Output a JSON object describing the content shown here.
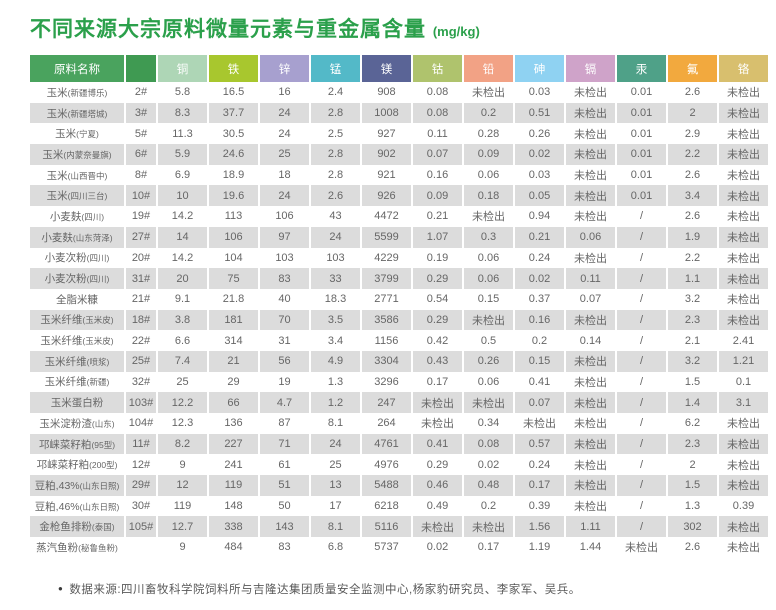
{
  "title": {
    "text": "不同来源大宗原料微量元素与重金属含量",
    "unit": "(mg/kg)"
  },
  "style": {
    "title_green": "#2ba04b",
    "header_name_bg": "#4aa35e",
    "header_sample_bg": "#3f9a52",
    "stripe": "#dcdcdc",
    "text_gray": "#666666",
    "header_text": "#ffffff"
  },
  "chart_data": {
    "type": "table",
    "title": "不同来源大宗原料微量元素与重金属含量 (mg/kg)",
    "name_column_header": "原料名称",
    "not_detected_label": "未检出",
    "element_columns": [
      {
        "label": "铜",
        "color": "#aed6b6"
      },
      {
        "label": "铁",
        "color": "#a8c72e"
      },
      {
        "label": "锌",
        "color": "#a7a0cf"
      },
      {
        "label": "锰",
        "color": "#53b9c8"
      },
      {
        "label": "镁",
        "color": "#5a6496"
      },
      {
        "label": "钴",
        "color": "#afc36d"
      },
      {
        "label": "铅",
        "color": "#f2a285"
      },
      {
        "label": "砷",
        "color": "#8fd2f2"
      },
      {
        "label": "镉",
        "color": "#cfa3c9"
      },
      {
        "label": "汞",
        "color": "#4fa188"
      },
      {
        "label": "氟",
        "color": "#f2a93e"
      },
      {
        "label": "铬",
        "color": "#d8bf6e"
      }
    ],
    "rows": [
      {
        "name": "玉米",
        "origin": "(新疆博乐)",
        "sample": "2#",
        "values": [
          "5.8",
          "16.5",
          "16",
          "2.4",
          "908",
          "0.08",
          "未检出",
          "0.03",
          "未检出",
          "0.01",
          "2.6",
          "未检出"
        ]
      },
      {
        "name": "玉米",
        "origin": "(新疆塔城)",
        "sample": "3#",
        "values": [
          "8.3",
          "37.7",
          "24",
          "2.8",
          "1008",
          "0.08",
          "0.2",
          "0.51",
          "未检出",
          "0.01",
          "2",
          "未检出"
        ]
      },
      {
        "name": "玉米",
        "origin": "(宁夏)",
        "sample": "5#",
        "values": [
          "11.3",
          "30.5",
          "24",
          "2.5",
          "927",
          "0.11",
          "0.28",
          "0.26",
          "未检出",
          "0.01",
          "2.9",
          "未检出"
        ]
      },
      {
        "name": "玉米",
        "origin": "(内蒙奈曼旗)",
        "sample": "6#",
        "values": [
          "5.9",
          "24.6",
          "25",
          "2.8",
          "902",
          "0.07",
          "0.09",
          "0.02",
          "未检出",
          "0.01",
          "2.2",
          "未检出"
        ]
      },
      {
        "name": "玉米",
        "origin": "(山西晋中)",
        "sample": "8#",
        "values": [
          "6.9",
          "18.9",
          "18",
          "2.8",
          "921",
          "0.16",
          "0.06",
          "0.03",
          "未检出",
          "0.01",
          "2.6",
          "未检出"
        ]
      },
      {
        "name": "玉米",
        "origin": "(四川三台)",
        "sample": "10#",
        "values": [
          "10",
          "19.6",
          "24",
          "2.6",
          "926",
          "0.09",
          "0.18",
          "0.05",
          "未检出",
          "0.01",
          "3.4",
          "未检出"
        ]
      },
      {
        "name": "小麦麸",
        "origin": "(四川)",
        "sample": "19#",
        "values": [
          "14.2",
          "113",
          "106",
          "43",
          "4472",
          "0.21",
          "未检出",
          "0.94",
          "未检出",
          "/",
          "2.6",
          "未检出"
        ]
      },
      {
        "name": "小麦麸",
        "origin": "(山东菏泽)",
        "sample": "27#",
        "values": [
          "14",
          "106",
          "97",
          "24",
          "5599",
          "1.07",
          "0.3",
          "0.21",
          "0.06",
          "/",
          "1.9",
          "未检出"
        ]
      },
      {
        "name": "小麦次粉",
        "origin": "(四川)",
        "sample": "20#",
        "values": [
          "14.2",
          "104",
          "103",
          "103",
          "4229",
          "0.19",
          "0.06",
          "0.24",
          "未检出",
          "/",
          "2.2",
          "未检出"
        ]
      },
      {
        "name": "小麦次粉",
        "origin": "(四川)",
        "sample": "31#",
        "values": [
          "20",
          "75",
          "83",
          "33",
          "3799",
          "0.29",
          "0.06",
          "0.02",
          "0.11",
          "/",
          "1.1",
          "未检出"
        ]
      },
      {
        "name": "全脂米糠",
        "origin": "",
        "sample": "21#",
        "values": [
          "9.1",
          "21.8",
          "40",
          "18.3",
          "2771",
          "0.54",
          "0.15",
          "0.37",
          "0.07",
          "/",
          "3.2",
          "未检出"
        ]
      },
      {
        "name": "玉米纤维",
        "origin": "(玉米皮)",
        "sample": "18#",
        "values": [
          "3.8",
          "181",
          "70",
          "3.5",
          "3586",
          "0.29",
          "未检出",
          "0.16",
          "未检出",
          "/",
          "2.3",
          "未检出"
        ]
      },
      {
        "name": "玉米纤维",
        "origin": "(玉米皮)",
        "sample": "22#",
        "values": [
          "6.6",
          "314",
          "31",
          "3.4",
          "1156",
          "0.42",
          "0.5",
          "0.2",
          "0.14",
          "/",
          "2.1",
          "2.41"
        ]
      },
      {
        "name": "玉米纤维",
        "origin": "(喷浆)",
        "sample": "25#",
        "values": [
          "7.4",
          "21",
          "56",
          "4.9",
          "3304",
          "0.43",
          "0.26",
          "0.15",
          "未检出",
          "/",
          "3.2",
          "1.21"
        ]
      },
      {
        "name": "玉米纤维",
        "origin": "(新疆)",
        "sample": "32#",
        "values": [
          "25",
          "29",
          "19",
          "1.3",
          "3296",
          "0.17",
          "0.06",
          "0.41",
          "未检出",
          "/",
          "1.5",
          "0.1"
        ]
      },
      {
        "name": "玉米蛋白粉",
        "origin": "",
        "sample": "103#",
        "values": [
          "12.2",
          "66",
          "4.7",
          "1.2",
          "247",
          "未检出",
          "未检出",
          "0.07",
          "未检出",
          "/",
          "1.4",
          "3.1"
        ]
      },
      {
        "name": "玉米淀粉渣",
        "origin": "(山东)",
        "sample": "104#",
        "values": [
          "12.3",
          "136",
          "87",
          "8.1",
          "264",
          "未检出",
          "0.34",
          "未检出",
          "未检出",
          "/",
          "6.2",
          "未检出"
        ]
      },
      {
        "name": "邛崃菜籽粕",
        "origin": "(95型)",
        "sample": "11#",
        "values": [
          "8.2",
          "227",
          "71",
          "24",
          "4761",
          "0.41",
          "0.08",
          "0.57",
          "未检出",
          "/",
          "2.3",
          "未检出"
        ]
      },
      {
        "name": "邛崃菜籽粕",
        "origin": "(200型)",
        "sample": "12#",
        "values": [
          "9",
          "241",
          "61",
          "25",
          "4976",
          "0.29",
          "0.02",
          "0.24",
          "未检出",
          "/",
          "2",
          "未检出"
        ]
      },
      {
        "name": "豆粕,43%",
        "origin": "(山东日照)",
        "sample": "29#",
        "values": [
          "12",
          "119",
          "51",
          "13",
          "5488",
          "0.46",
          "0.48",
          "0.17",
          "未检出",
          "/",
          "1.5",
          "未检出"
        ]
      },
      {
        "name": "豆粕,46%",
        "origin": "(山东日照)",
        "sample": "30#",
        "values": [
          "119",
          "148",
          "50",
          "17",
          "6218",
          "0.49",
          "0.2",
          "0.39",
          "未检出",
          "/",
          "1.3",
          "0.39"
        ]
      },
      {
        "name": "金枪鱼排粉",
        "origin": "(泰国)",
        "sample": "105#",
        "values": [
          "12.7",
          "338",
          "143",
          "8.1",
          "5116",
          "未检出",
          "未检出",
          "1.56",
          "1.11",
          "/",
          "302",
          "未检出"
        ]
      },
      {
        "name": "蒸汽鱼粉",
        "origin": "(秘鲁鱼粉)",
        "sample": "",
        "values": [
          "9",
          "484",
          "83",
          "6.8",
          "5737",
          "0.02",
          "0.17",
          "1.19",
          "1.44",
          "未检出",
          "2.6",
          "未检出"
        ]
      }
    ]
  },
  "footer": {
    "bullet": "●",
    "text": "数据来源:四川畜牧科学院饲料所与吉隆达集团质量安全监测中心,杨家豹研究员、李家军、吴兵。"
  }
}
